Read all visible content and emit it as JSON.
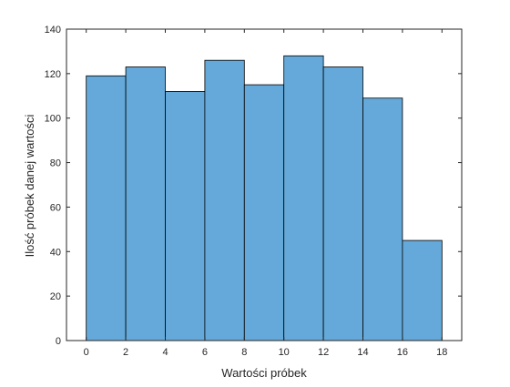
{
  "chart_data": {
    "type": "bar",
    "chart_kind": "histogram",
    "xlabel": "Wartości próbek",
    "ylabel": "Ilość próbek danej wartości",
    "xlim": [
      -1,
      19
    ],
    "ylim": [
      0,
      140
    ],
    "x_ticks": [
      0,
      2,
      4,
      6,
      8,
      10,
      12,
      14,
      16,
      18
    ],
    "y_ticks": [
      0,
      20,
      40,
      60,
      80,
      100,
      120,
      140
    ],
    "bin_edges": [
      0,
      2,
      4,
      6,
      8,
      10,
      12,
      14,
      16,
      18
    ],
    "values": [
      119,
      123,
      112,
      126,
      115,
      128,
      123,
      109,
      45
    ],
    "grid": false,
    "colors": {
      "bar_fill": "#64a9d9",
      "bar_edge": "#000000",
      "axis": "#262626"
    }
  }
}
